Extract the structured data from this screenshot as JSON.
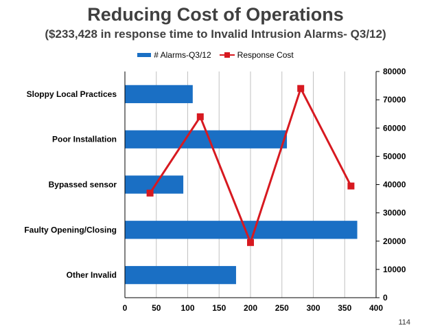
{
  "title": "Reducing Cost of Operations",
  "subtitle": "($233,428 in response time to Invalid Intrusion Alarms- Q3/12)",
  "page_number": "114",
  "colors": {
    "bar": "#1a6fc4",
    "line": "#d71920",
    "grid": "#c0c0c0",
    "text": "#404040"
  },
  "chart_data": {
    "type": "bar",
    "orientation": "horizontal",
    "categories": [
      "Sloppy Local Practices",
      "Poor Installation",
      "Bypassed sensor",
      "Faulty Opening/Closing",
      "Other Invalid"
    ],
    "series": [
      {
        "name": "# Alarms-Q3/12",
        "type": "bar",
        "axis": "bottom",
        "values": [
          108,
          258,
          93,
          370,
          177
        ]
      },
      {
        "name": "Response Cost",
        "type": "line",
        "axis": "right",
        "points": [
          [
            40,
            37000
          ],
          [
            120,
            64000
          ],
          [
            200,
            19500
          ],
          [
            280,
            74000
          ],
          [
            360,
            39500
          ]
        ]
      }
    ],
    "x_axis": {
      "range": [
        0,
        400
      ],
      "ticks": [
        "0",
        "50",
        "100",
        "150",
        "200",
        "250",
        "300",
        "350",
        "400"
      ],
      "gridlines": true
    },
    "y2_axis": {
      "range": [
        0,
        80000
      ],
      "ticks": [
        "0",
        "10000",
        "20000",
        "30000",
        "40000",
        "50000",
        "60000",
        "70000",
        "80000"
      ]
    },
    "legend": "top"
  }
}
